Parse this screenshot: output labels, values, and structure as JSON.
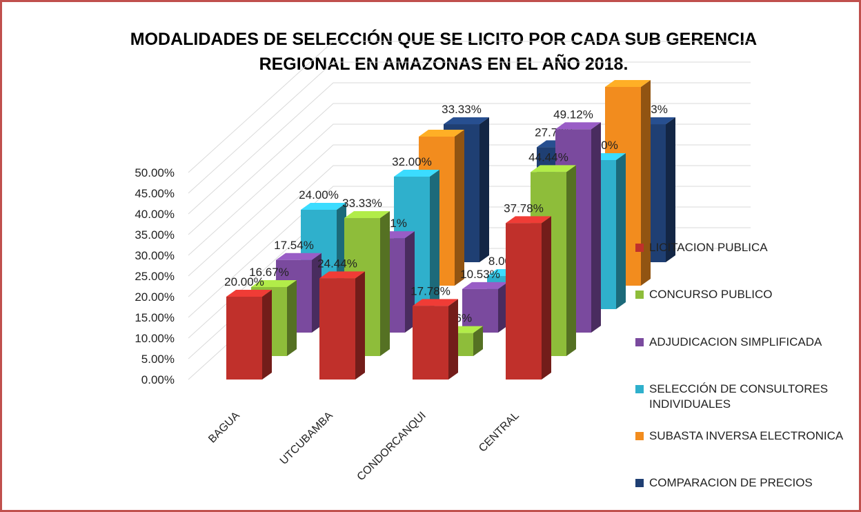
{
  "chart_data": {
    "type": "bar3d",
    "title": "MODALIDADES DE SELECCIÓN QUE SE LICITO POR CADA SUB GERENCIA REGIONAL EN AMAZONAS EN EL AÑO 2018.",
    "categories": [
      "BAGUA",
      "UTCUBAMBA",
      "CONDORCANQUI",
      "CENTRAL"
    ],
    "series": [
      {
        "name": "LICITACION PUBLICA",
        "color": "#c0302b",
        "values": [
          20,
          24.44,
          17.78,
          37.78
        ],
        "value_labels": [
          "20.00%",
          "24.44%",
          "17.78%",
          "37.78%"
        ]
      },
      {
        "name": "CONCURSO PUBLICO",
        "color": "#8ebd3a",
        "values": [
          16.67,
          33.33,
          5.56,
          44.44
        ],
        "value_labels": [
          "16.67%",
          "33.33%",
          "5.56%",
          "44.44%"
        ]
      },
      {
        "name": "ADJUDICACION SIMPLIFICADA",
        "color": "#7a4a9e",
        "values": [
          17.54,
          22.81,
          10.53,
          49.12
        ],
        "value_labels": [
          "17.54%",
          "22.81%",
          "10.53%",
          "49.12%"
        ]
      },
      {
        "name": "SELECCIÓN DE CONSULTORES INDIVIDUALES",
        "color": "#2fb0cc",
        "values": [
          24,
          32,
          8,
          36
        ],
        "value_labels": [
          "24.00%",
          "32.00%",
          "8.00%",
          "36.00%"
        ]
      },
      {
        "name": "SUBASTA INVERSA ELECTRONICA",
        "color": "#f28c1e",
        "values": [
          0,
          36,
          5.56,
          48
        ],
        "value_labels": [
          null,
          null,
          "5.56%",
          null
        ]
      },
      {
        "name": "COMPARACION DE PRECIOS",
        "color": "#1f3f73",
        "values": [
          0,
          33.33,
          27.78,
          33.33
        ],
        "value_labels": [
          null,
          "33.33%",
          "27.78%",
          "33.33%"
        ]
      }
    ],
    "ylim": [
      0,
      50
    ],
    "yticks": [
      {
        "value": 0,
        "label": "0.00%"
      },
      {
        "value": 5,
        "label": "5.00%"
      },
      {
        "value": 10,
        "label": "10.00%"
      },
      {
        "value": 15,
        "label": "15.00%"
      },
      {
        "value": 20,
        "label": "20.00%"
      },
      {
        "value": 25,
        "label": "25.00%"
      },
      {
        "value": 30,
        "label": "30.00%"
      },
      {
        "value": 35,
        "label": "35.00%"
      },
      {
        "value": 40,
        "label": "40.00%"
      },
      {
        "value": 45,
        "label": "45.00%"
      },
      {
        "value": 50,
        "label": "50.00%"
      }
    ],
    "grid": true,
    "legend": "right"
  }
}
